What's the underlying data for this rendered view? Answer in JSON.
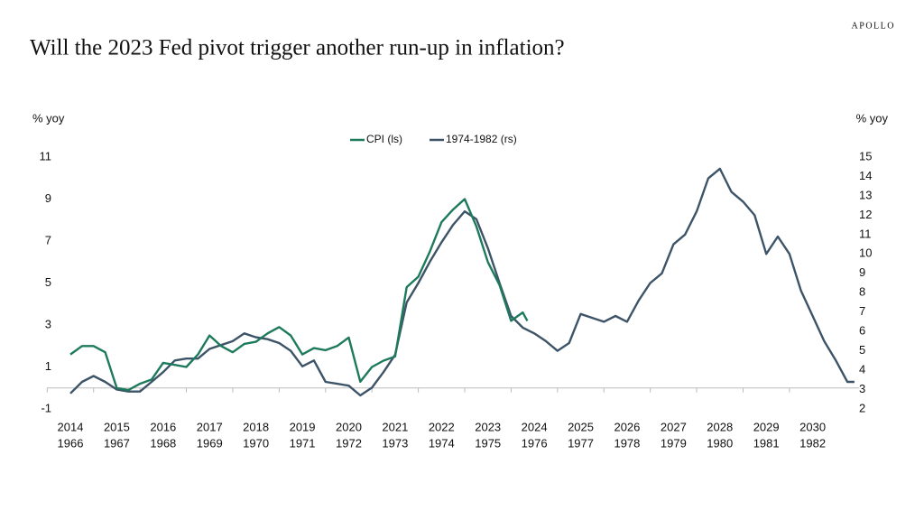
{
  "brand": "APOLLO",
  "chart_data": {
    "type": "line",
    "title": "Will the 2023 Fed pivot trigger another run-up in inflation?",
    "y_axis_label": "% yoy",
    "y2_axis_label": "% yoy",
    "xlim": [
      2014,
      2031
    ],
    "xticks": [
      2014,
      2015,
      2016,
      2017,
      2018,
      2019,
      2020,
      2021,
      2022,
      2023,
      2024,
      2025,
      2026,
      2027,
      2028,
      2029,
      2030
    ],
    "xticks_secondary": [
      "1966",
      "1967",
      "1968",
      "1969",
      "1970",
      "1971",
      "1972",
      "1973",
      "1974",
      "1975",
      "1976",
      "1977",
      "1978",
      "1979",
      "1980",
      "1981",
      "1982"
    ],
    "ylim": [
      -1,
      11
    ],
    "yticks": [
      -1,
      1,
      3,
      5,
      7,
      9,
      11
    ],
    "y2lim": [
      2,
      15
    ],
    "y2ticks": [
      2,
      3,
      4,
      5,
      6,
      7,
      8,
      9,
      10,
      11,
      12,
      13,
      14,
      15
    ],
    "legend": "top",
    "series": [
      {
        "name": "CPI (ls)",
        "color": "#1e7a5c",
        "x": [
          2014,
          2014.25,
          2014.5,
          2014.75,
          2015,
          2015.25,
          2015.5,
          2015.75,
          2016,
          2016.25,
          2016.5,
          2016.75,
          2017,
          2017.25,
          2017.5,
          2017.75,
          2018,
          2018.25,
          2018.5,
          2018.75,
          2019,
          2019.25,
          2019.5,
          2019.75,
          2020,
          2020.25,
          2020.5,
          2020.75,
          2021,
          2021.25,
          2021.5,
          2021.75,
          2022,
          2022.25,
          2022.5,
          2022.75,
          2023,
          2023.25,
          2023.5,
          2023.75,
          2023.85
        ],
        "values": [
          1.6,
          2.0,
          2.0,
          1.7,
          0.0,
          -0.1,
          0.2,
          0.4,
          1.2,
          1.1,
          1.0,
          1.6,
          2.5,
          2.0,
          1.7,
          2.1,
          2.2,
          2.6,
          2.9,
          2.5,
          1.6,
          1.9,
          1.8,
          2.0,
          2.4,
          0.3,
          1.0,
          1.3,
          1.5,
          4.8,
          5.3,
          6.5,
          7.9,
          8.5,
          9.0,
          7.7,
          6.0,
          4.9,
          3.2,
          3.6,
          3.2
        ]
      },
      {
        "name": "1974-1982 (rs)",
        "color": "#3d5468",
        "axis": "y2",
        "x": [
          2014,
          2014.25,
          2014.5,
          2014.75,
          2015,
          2015.25,
          2015.5,
          2015.75,
          2016,
          2016.25,
          2016.5,
          2016.75,
          2017,
          2017.25,
          2017.5,
          2017.75,
          2018,
          2018.25,
          2018.5,
          2018.75,
          2019,
          2019.25,
          2019.5,
          2019.75,
          2020,
          2020.25,
          2020.5,
          2020.75,
          2021,
          2021.25,
          2021.5,
          2021.75,
          2022,
          2022.25,
          2022.5,
          2022.75,
          2023,
          2023.25,
          2023.5,
          2023.75,
          2024,
          2024.25,
          2024.5,
          2024.75,
          2025,
          2025.25,
          2025.5,
          2025.75,
          2026,
          2026.25,
          2026.5,
          2026.75,
          2027,
          2027.25,
          2027.5,
          2027.75,
          2028,
          2028.25,
          2028.5,
          2028.75,
          2029,
          2029.25,
          2029.5,
          2029.75,
          2030,
          2030.25,
          2030.5,
          2030.75,
          2030.9
        ],
        "values": [
          2.8,
          3.4,
          3.7,
          3.4,
          3.0,
          2.9,
          2.9,
          3.4,
          3.9,
          4.5,
          4.6,
          4.6,
          5.1,
          5.3,
          5.5,
          5.9,
          5.7,
          5.6,
          5.4,
          5.0,
          4.2,
          4.5,
          3.4,
          3.3,
          3.2,
          2.7,
          3.1,
          3.9,
          4.8,
          7.5,
          8.5,
          9.6,
          10.6,
          11.5,
          12.2,
          11.8,
          10.3,
          8.5,
          6.8,
          6.2,
          5.9,
          5.5,
          5.0,
          5.4,
          6.9,
          6.7,
          6.5,
          6.8,
          6.5,
          7.6,
          8.5,
          9.0,
          10.5,
          11.0,
          12.2,
          13.9,
          14.4,
          13.2,
          12.7,
          12.0,
          10.0,
          10.9,
          10.0,
          8.1,
          6.8,
          5.5,
          4.5,
          3.4,
          3.4
        ]
      }
    ]
  }
}
